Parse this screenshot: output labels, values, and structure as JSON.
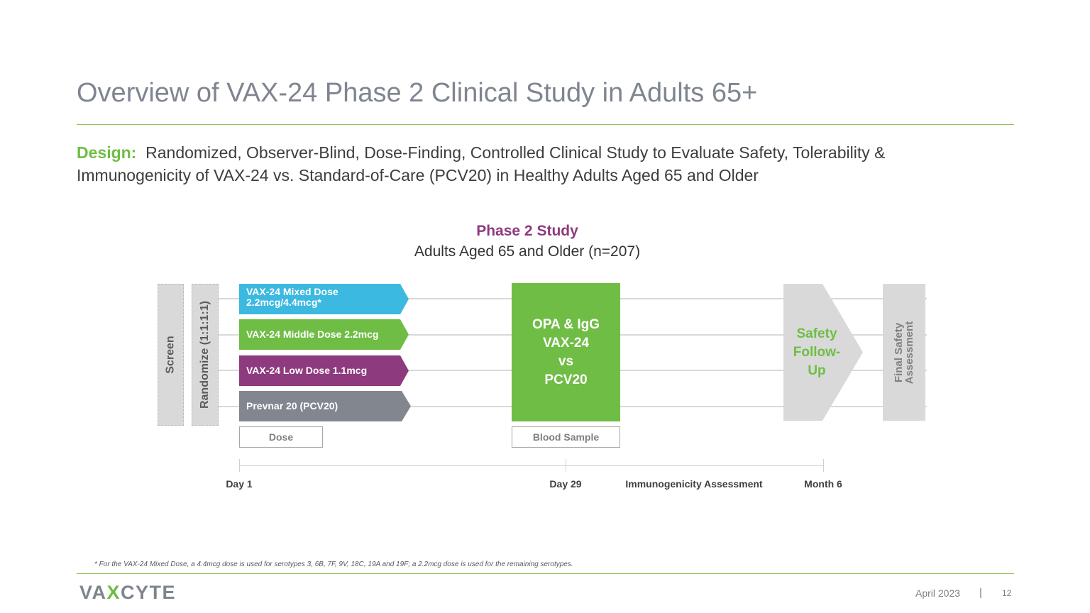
{
  "title": "Overview of VAX-24 Phase 2 Clinical Study in Adults 65+",
  "design": {
    "label": "Design:",
    "text": "Randomized, Observer-Blind, Dose-Finding, Controlled Clinical Study to Evaluate Safety, Tolerability & Immunogenicity of VAX-24 vs. Standard-of-Care (PCV20) in Healthy Adults Aged 65 and Older"
  },
  "study": {
    "title": "Phase 2 Study",
    "subtitle": "Adults Aged 65 and Older (n=207)"
  },
  "diagram": {
    "screen": "Screen",
    "randomize": "Randomize  (1:1:1:1)",
    "arms": [
      {
        "line1": "VAX-24 Mixed Dose",
        "line2": "2.2mcg/4.4mcg*",
        "color": "#3bb9e0"
      },
      {
        "line1": "VAX-24 Middle Dose 2.2mcg",
        "color": "#6fbd44"
      },
      {
        "line1": "VAX-24 Low Dose 1.1mcg",
        "color": "#8e3a7e"
      },
      {
        "line1": "Prevnar 20 (PCV20)",
        "color": "#82878f"
      }
    ],
    "blood": {
      "line1": "OPA & IgG",
      "line2": "VAX-24",
      "line3": "vs",
      "line4": "PCV20"
    },
    "safety": {
      "line1": "Safety",
      "line2": "Follow-",
      "line3": "Up"
    },
    "final": {
      "line1": "Final Safety",
      "line2": "Assessment"
    },
    "dose_label": "Dose",
    "blood_label": "Blood Sample"
  },
  "timeline": {
    "day1": "Day 1",
    "day29": "Day 29",
    "immuno": "Immunogenicity Assessment",
    "month6": "Month 6"
  },
  "footnote": "* For the VAX-24 Mixed Dose, a 4.4mcg dose is used for serotypes 3, 6B, 7F, 9V, 18C, 19A and 19F; a 2.2mcg dose is used for the remaining serotypes.",
  "footer": {
    "logo_a": "VA",
    "logo_x": "X",
    "logo_b": "CYTE",
    "date": "April 2023",
    "sep": "|",
    "page": "12"
  },
  "colors": {
    "accent_green": "#6fbd44",
    "purple": "#8e3a7e",
    "blue": "#3bb9e0",
    "gray": "#82878f"
  }
}
